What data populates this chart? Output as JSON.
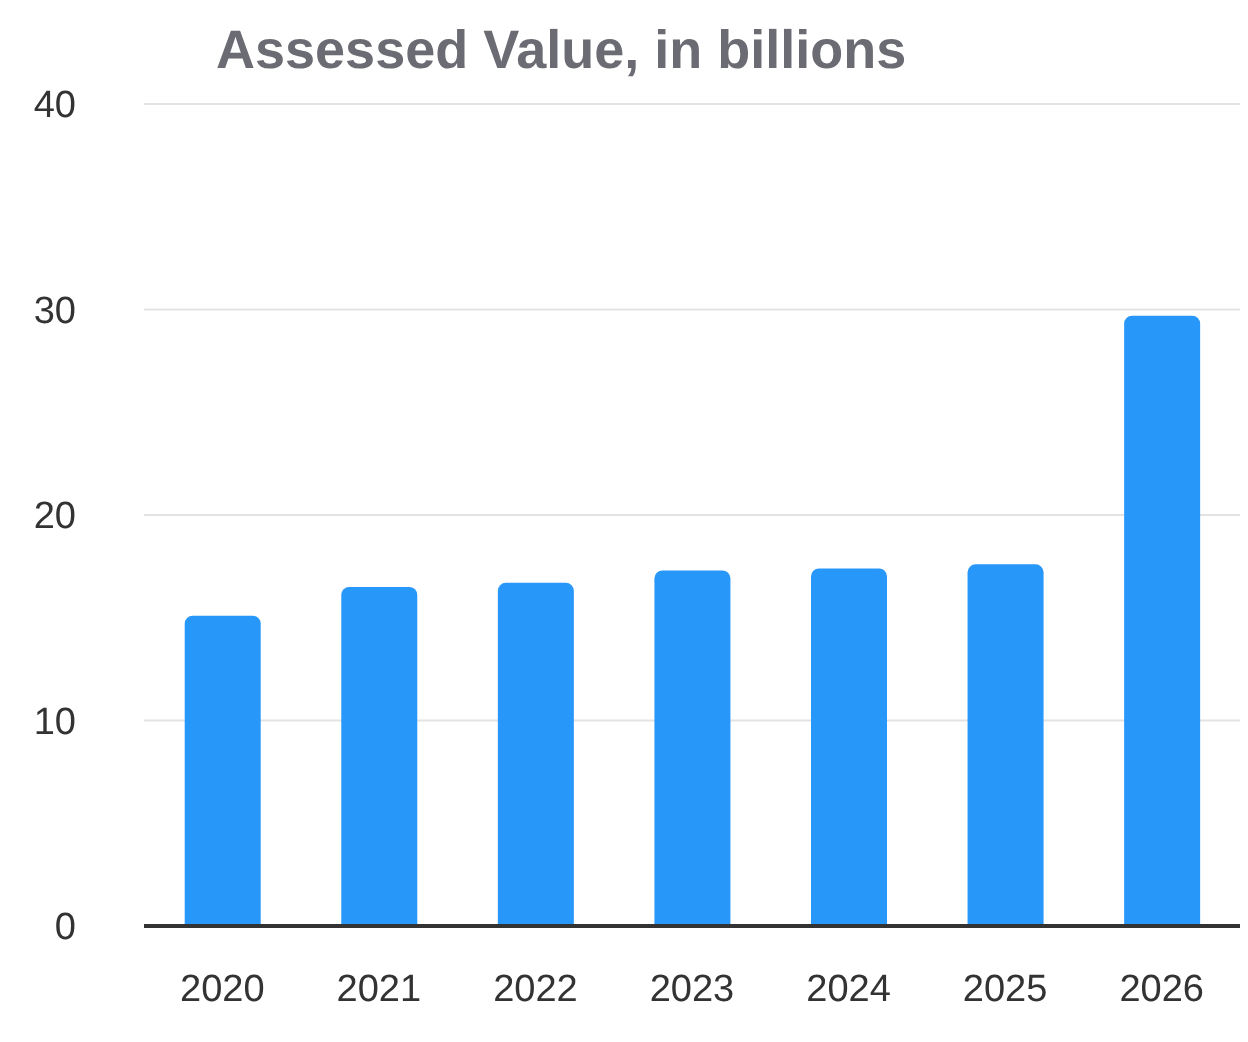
{
  "chart_data": {
    "type": "bar",
    "title": "Assessed Value, in billions",
    "categories": [
      "2020",
      "2021",
      "2022",
      "2023",
      "2024",
      "2025",
      "2026"
    ],
    "values": [
      15.1,
      16.5,
      16.7,
      17.3,
      17.4,
      17.6,
      29.7
    ],
    "color": "#2897fa",
    "ylim": [
      0,
      40
    ],
    "yticks": [
      0,
      10,
      20,
      30,
      40
    ],
    "grid": "y"
  }
}
